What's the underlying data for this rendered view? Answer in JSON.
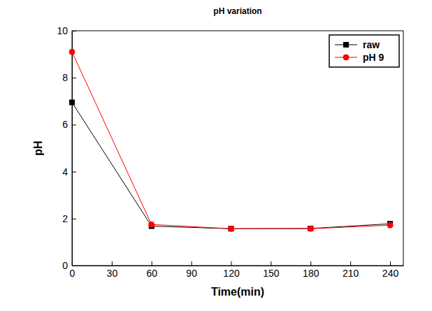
{
  "chart_data": {
    "type": "line",
    "title": "pH variation",
    "x_label": "Time(min)",
    "y_label": "pH",
    "x": [
      0,
      60,
      120,
      180,
      240
    ],
    "series": [
      {
        "name": "raw",
        "color": "#000000",
        "marker": "square",
        "values": [
          6.95,
          1.68,
          1.57,
          1.58,
          1.78
        ]
      },
      {
        "name": "pH 9",
        "color": "#ff0000",
        "marker": "circle",
        "values": [
          9.1,
          1.75,
          1.57,
          1.57,
          1.72
        ]
      }
    ],
    "xlim": [
      0,
      250
    ],
    "xticks": [
      0,
      30,
      60,
      90,
      120,
      150,
      180,
      210,
      240
    ],
    "ylim": [
      0,
      10
    ],
    "yticks": [
      0,
      2,
      4,
      6,
      8,
      10
    ],
    "grid": false,
    "legend": "upper right"
  }
}
